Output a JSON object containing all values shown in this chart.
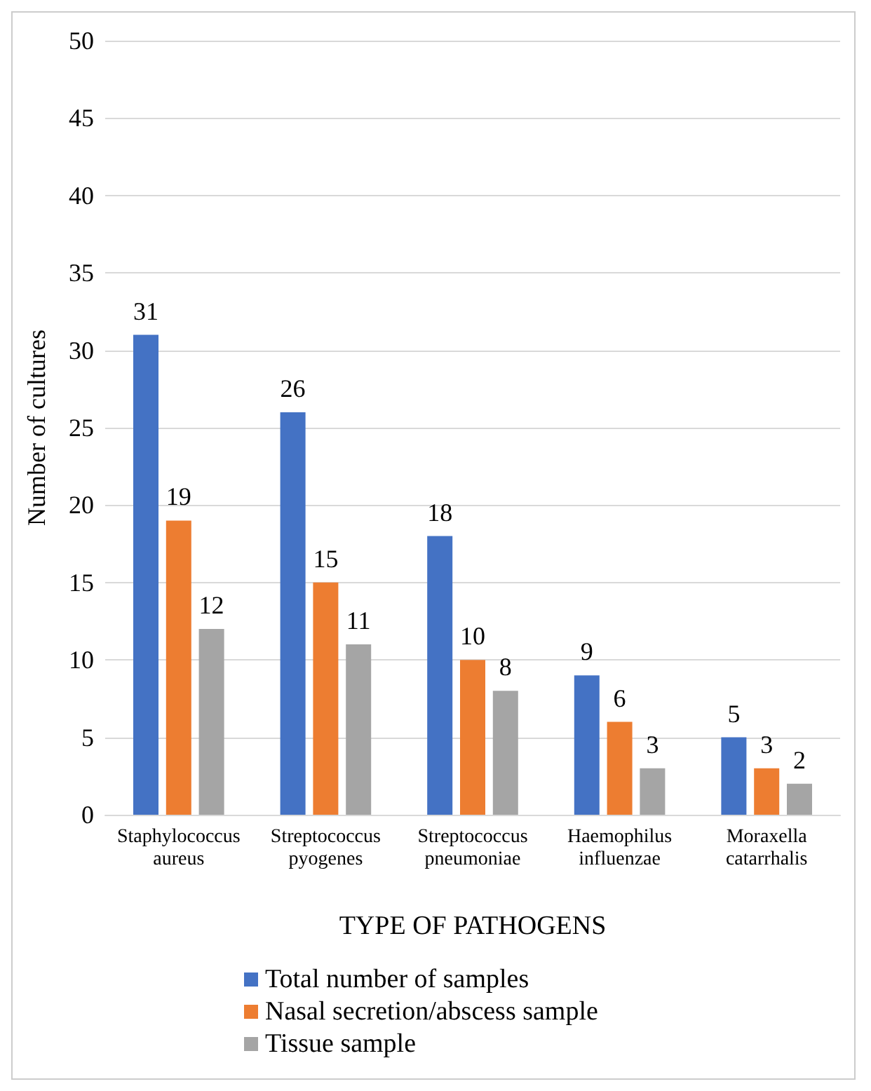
{
  "chart_data": {
    "type": "bar",
    "xlabel": "TYPE OF PATHOGENS",
    "ylabel": "Number of cultures",
    "categories": [
      "Staphylococcus\naureus",
      "Streptococcus\npyogenes",
      "Streptococcus\npneumoniae",
      "Haemophilus\ninfluenzae",
      "Moraxella\ncatarrhalis"
    ],
    "series": [
      {
        "name": "Total number of samples",
        "color": "#4472c4",
        "values": [
          31,
          26,
          18,
          9,
          5
        ]
      },
      {
        "name": "Nasal secretion/abscess sample",
        "color": "#ed7d31",
        "values": [
          19,
          15,
          10,
          6,
          3
        ]
      },
      {
        "name": "Tissue sample",
        "color": "#a5a5a5",
        "values": [
          12,
          11,
          8,
          3,
          2
        ]
      }
    ],
    "ylim": [
      0,
      50
    ],
    "yticks": [
      0,
      5,
      10,
      15,
      20,
      25,
      30,
      35,
      40,
      45,
      50
    ],
    "grid": "y",
    "legend": "bottom",
    "data_labels": true
  }
}
